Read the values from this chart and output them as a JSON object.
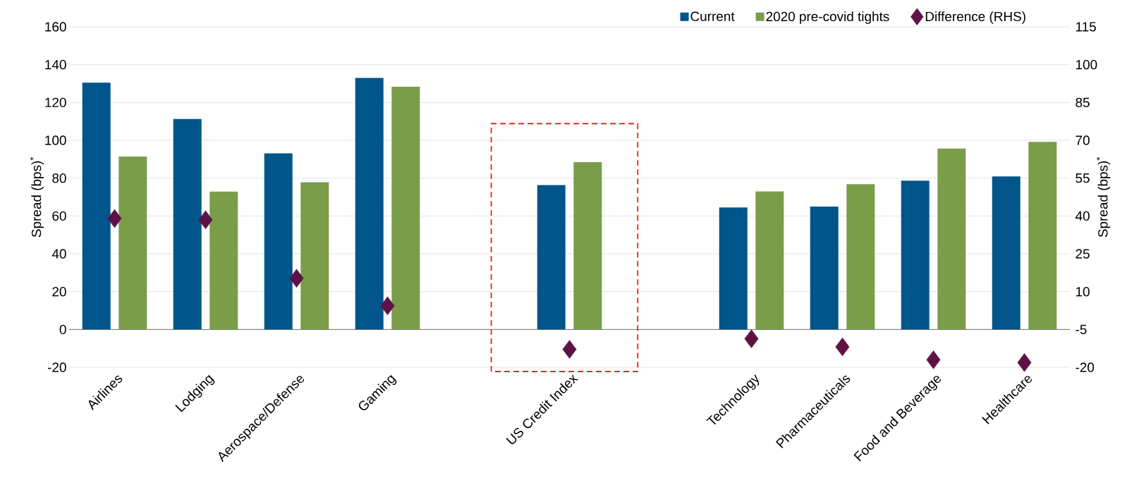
{
  "chart_data": {
    "type": "bar",
    "categories": [
      "Airlines",
      "Lodging",
      "Aerospace/Defense",
      "Gaming",
      null,
      "US Credit Index",
      null,
      "Technology",
      "Pharmaceuticals",
      "Food and Beverage",
      "Healthcare"
    ],
    "series": [
      {
        "name": "Current",
        "color": "#00558a",
        "values": [
          130.5,
          111.3,
          93.1,
          133,
          null,
          76.3,
          null,
          64.5,
          65,
          78.7,
          80.9
        ]
      },
      {
        "name": "2020 pre-covid tights",
        "color": "#7a9d4a",
        "values": [
          91.4,
          72.9,
          77.8,
          128.3,
          null,
          88.4,
          null,
          73,
          76.8,
          95.6,
          99.2
        ]
      },
      {
        "name": "Difference (RHS)",
        "type": "scatter",
        "axis": "y2",
        "marker": "diamond",
        "color": "#5e1245",
        "values": [
          39,
          38.5,
          15.3,
          4.4,
          null,
          -12.9,
          null,
          -8.7,
          -11.9,
          -17,
          -18.1
        ]
      }
    ],
    "ylabel": "Spread (bps)$^{*}$",
    "y2label": "Spread (bps)$^{*}$",
    "ylim": [
      -20,
      160
    ],
    "yticks": [
      -20,
      0,
      20,
      40,
      60,
      80,
      100,
      120,
      140,
      160
    ],
    "y2lim": [
      -20,
      115
    ],
    "y2ticks": [
      -20,
      -5,
      10,
      25,
      40,
      55,
      70,
      85,
      100,
      115
    ],
    "grid": "y",
    "legend": "top right"
  }
}
